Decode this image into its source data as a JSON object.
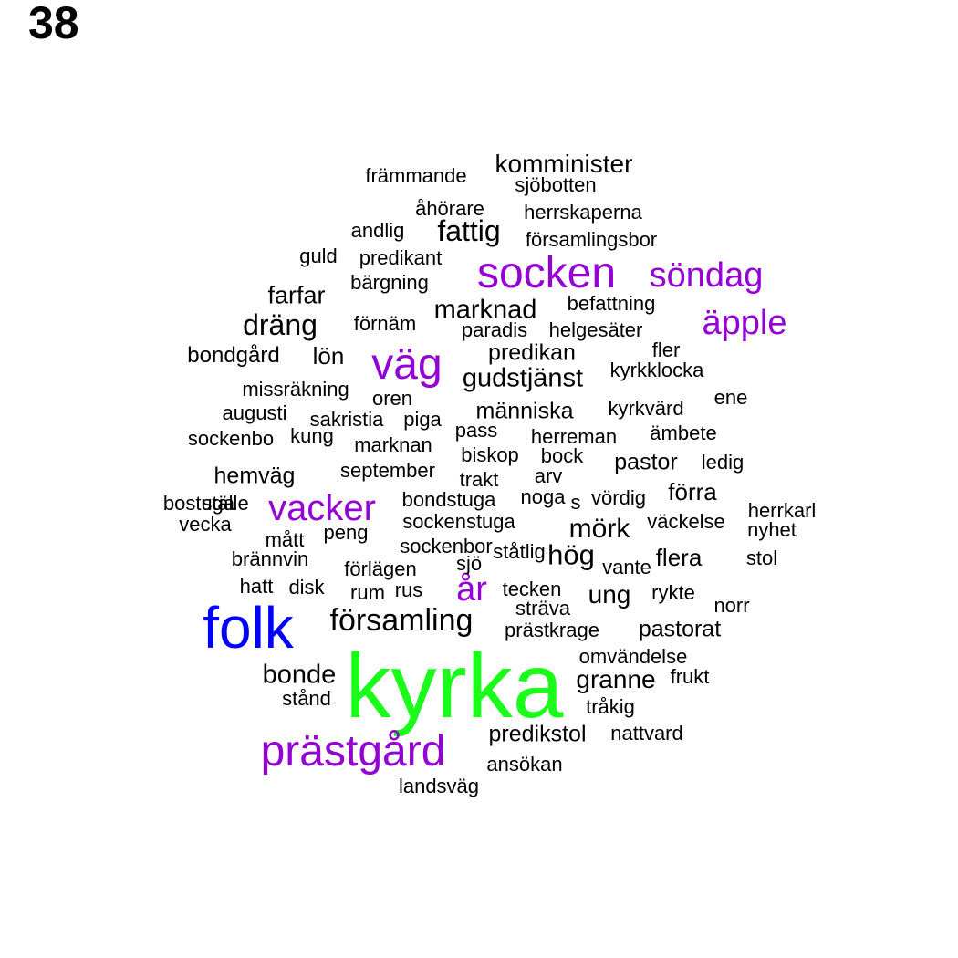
{
  "page_label": "38",
  "colors": {
    "green": "#1afd1a",
    "blue": "#0000ff",
    "purple": "#9400d3",
    "black": "#000000"
  },
  "words": [
    {
      "text": "kyrka",
      "color": "green"
    },
    {
      "text": "folk",
      "color": "blue"
    },
    {
      "text": "socken",
      "color": "purple"
    },
    {
      "text": "prästgård",
      "color": "purple"
    },
    {
      "text": "väg",
      "color": "purple"
    },
    {
      "text": "vacker",
      "color": "purple"
    },
    {
      "text": "söndag",
      "color": "purple"
    },
    {
      "text": "äpple",
      "color": "purple"
    },
    {
      "text": "år",
      "color": "purple"
    },
    {
      "text": "församling",
      "color": "black"
    },
    {
      "text": "komminister",
      "color": "black"
    },
    {
      "text": "fattig",
      "color": "black"
    },
    {
      "text": "dräng",
      "color": "black"
    },
    {
      "text": "marknad",
      "color": "black"
    },
    {
      "text": "gudstjänst",
      "color": "black"
    },
    {
      "text": "mörk",
      "color": "black"
    },
    {
      "text": "hög",
      "color": "black"
    },
    {
      "text": "bonde",
      "color": "black"
    },
    {
      "text": "granne",
      "color": "black"
    },
    {
      "text": "farfar",
      "color": "black"
    },
    {
      "text": "lön",
      "color": "black"
    },
    {
      "text": "predikan",
      "color": "black"
    },
    {
      "text": "människa",
      "color": "black"
    },
    {
      "text": "pastor",
      "color": "black"
    },
    {
      "text": "förra",
      "color": "black"
    },
    {
      "text": "ung",
      "color": "black"
    },
    {
      "text": "flera",
      "color": "black"
    },
    {
      "text": "pastorat",
      "color": "black"
    },
    {
      "text": "predikstol",
      "color": "black"
    },
    {
      "text": "hemväg",
      "color": "black"
    },
    {
      "text": "bondgård",
      "color": "black"
    },
    {
      "text": "främmande",
      "color": "black"
    },
    {
      "text": "sjöbotten",
      "color": "black"
    },
    {
      "text": "åhörare",
      "color": "black"
    },
    {
      "text": "herrskaperna",
      "color": "black"
    },
    {
      "text": "andlig",
      "color": "black"
    },
    {
      "text": "församlingsbor",
      "color": "black"
    },
    {
      "text": "guld",
      "color": "black"
    },
    {
      "text": "predikant",
      "color": "black"
    },
    {
      "text": "bärgning",
      "color": "black"
    },
    {
      "text": "befattning",
      "color": "black"
    },
    {
      "text": "förnäm",
      "color": "black"
    },
    {
      "text": "paradis",
      "color": "black"
    },
    {
      "text": "helgesäter",
      "color": "black"
    },
    {
      "text": "fler",
      "color": "black"
    },
    {
      "text": "kyrkklocka",
      "color": "black"
    },
    {
      "text": "missräkning",
      "color": "black"
    },
    {
      "text": "oren",
      "color": "black"
    },
    {
      "text": "ene",
      "color": "black"
    },
    {
      "text": "augusti",
      "color": "black"
    },
    {
      "text": "sakristia",
      "color": "black"
    },
    {
      "text": "piga",
      "color": "black"
    },
    {
      "text": "kyrkvärd",
      "color": "black"
    },
    {
      "text": "pass",
      "color": "black"
    },
    {
      "text": "sockenbo",
      "color": "black"
    },
    {
      "text": "kung",
      "color": "black"
    },
    {
      "text": "marknan",
      "color": "black"
    },
    {
      "text": "herreman",
      "color": "black"
    },
    {
      "text": "ämbete",
      "color": "black"
    },
    {
      "text": "biskop",
      "color": "black"
    },
    {
      "text": "bock",
      "color": "black"
    },
    {
      "text": "ledig",
      "color": "black"
    },
    {
      "text": "september",
      "color": "black"
    },
    {
      "text": "trakt",
      "color": "black"
    },
    {
      "text": "arv",
      "color": "black"
    },
    {
      "text": "bostuga",
      "color": "black"
    },
    {
      "text": "noga",
      "color": "black"
    },
    {
      "text": "s",
      "color": "black"
    },
    {
      "text": "vördig",
      "color": "black"
    },
    {
      "text": "bondstuga",
      "color": "black"
    },
    {
      "text": "ställe",
      "color": "black"
    },
    {
      "text": "vecka",
      "color": "black"
    },
    {
      "text": "sockenstuga",
      "color": "black"
    },
    {
      "text": "väckelse",
      "color": "black"
    },
    {
      "text": "herrkarl",
      "color": "black"
    },
    {
      "text": "nyhet",
      "color": "black"
    },
    {
      "text": "mått",
      "color": "black"
    },
    {
      "text": "peng",
      "color": "black"
    },
    {
      "text": "sockenbor",
      "color": "black"
    },
    {
      "text": "ståtlig",
      "color": "black"
    },
    {
      "text": "sjö",
      "color": "black"
    },
    {
      "text": "vante",
      "color": "black"
    },
    {
      "text": "stol",
      "color": "black"
    },
    {
      "text": "brännvin",
      "color": "black"
    },
    {
      "text": "förlägen",
      "color": "black"
    },
    {
      "text": "hatt",
      "color": "black"
    },
    {
      "text": "disk",
      "color": "black"
    },
    {
      "text": "rum",
      "color": "black"
    },
    {
      "text": "rus",
      "color": "black"
    },
    {
      "text": "tecken",
      "color": "black"
    },
    {
      "text": "rykte",
      "color": "black"
    },
    {
      "text": "sträva",
      "color": "black"
    },
    {
      "text": "norr",
      "color": "black"
    },
    {
      "text": "prästkrage",
      "color": "black"
    },
    {
      "text": "omvändelse",
      "color": "black"
    },
    {
      "text": "frukt",
      "color": "black"
    },
    {
      "text": "stånd",
      "color": "black"
    },
    {
      "text": "tråkig",
      "color": "black"
    },
    {
      "text": "nattvard",
      "color": "black"
    },
    {
      "text": "ansökan",
      "color": "black"
    },
    {
      "text": "landsväg",
      "color": "black"
    }
  ]
}
